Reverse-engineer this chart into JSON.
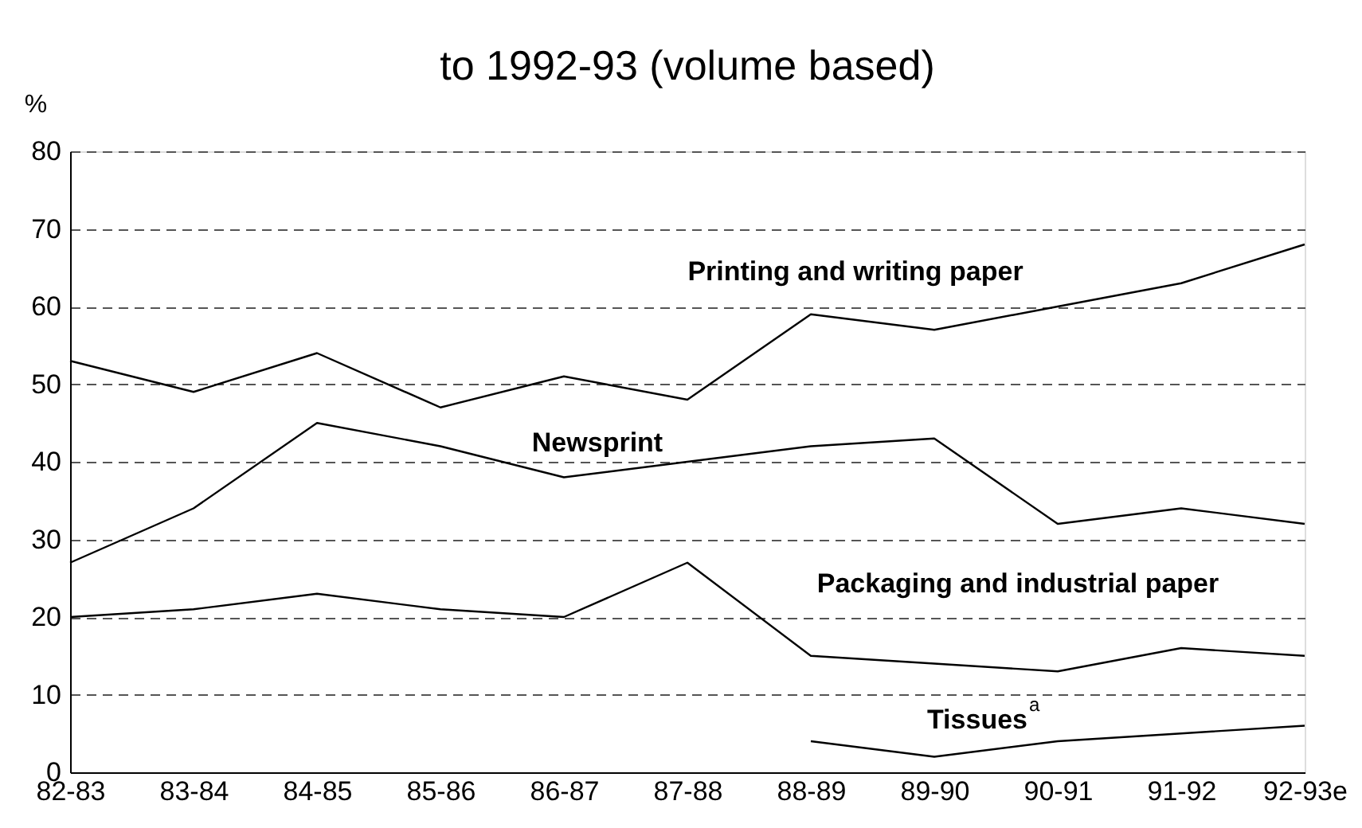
{
  "chart_data": {
    "type": "line",
    "title": "to 1992-93 (volume based)",
    "ylabel": "%",
    "categories": [
      "82-83",
      "83-84",
      "84-85",
      "85-86",
      "86-87",
      "87-88",
      "88-89",
      "89-90",
      "90-91",
      "91-92",
      "92-93e"
    ],
    "series": [
      {
        "name": "Printing and writing paper",
        "color": "#000000",
        "values": [
          53,
          49,
          54,
          47,
          51,
          48,
          59,
          57,
          60,
          63,
          68
        ]
      },
      {
        "name": "Newsprint",
        "color": "#000000",
        "values": [
          27,
          34,
          45,
          42,
          38,
          40,
          42,
          43,
          32,
          34,
          32
        ]
      },
      {
        "name": "Packaging and industrial paper",
        "color": "#000000",
        "values": [
          20,
          21,
          23,
          21,
          20,
          27,
          15,
          14,
          13,
          16,
          15
        ]
      },
      {
        "name": "Tissues$^{a}$",
        "color": "#000000",
        "values": [
          null,
          null,
          null,
          null,
          null,
          null,
          4,
          2,
          4,
          5,
          6
        ]
      }
    ],
    "ylim": [
      0,
      80
    ],
    "yticks": [
      0,
      10,
      20,
      30,
      40,
      50,
      60,
      70,
      80
    ],
    "grid": "y",
    "marker": "none",
    "line_style": "solid"
  }
}
